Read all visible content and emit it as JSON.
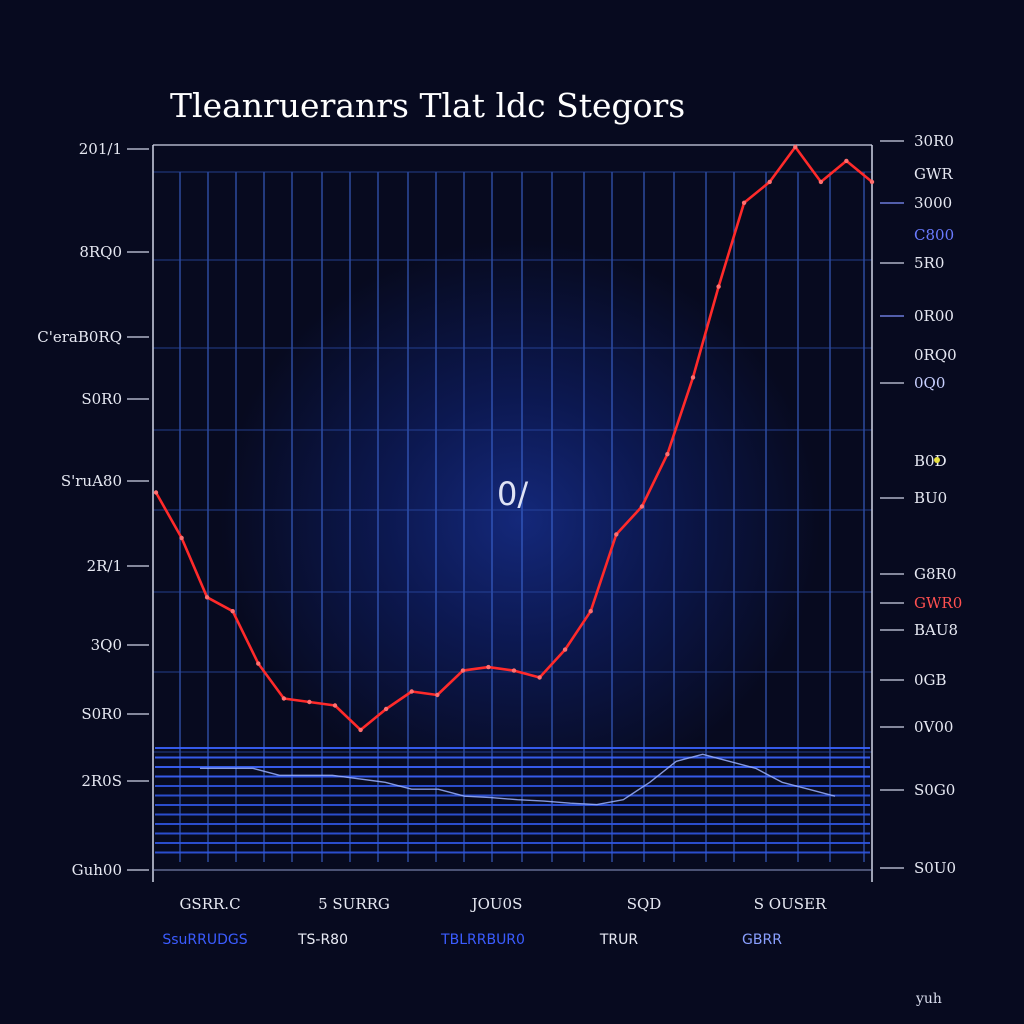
{
  "chart_data": {
    "type": "line",
    "title": "Tleanrueranrs Tlat ldc Stegors",
    "annotation": "0/",
    "corner_label": "yuh",
    "y_left_ticks": [
      "20'00",
      "1800",
      "1600",
      "1400",
      "1200",
      "1000",
      "800",
      "600",
      "400",
      "200",
      "00"
    ],
    "y_left_ticks_labels": [
      "201/1",
      "8RQ0",
      "C'eraB0RQ",
      "S0R0",
      "S'ruA80",
      "2R/1",
      "3Q0",
      "S0R0",
      "2R0S",
      "Guh00"
    ],
    "y_right_ticks": [
      "30R0",
      "GWR",
      "3000",
      "C800",
      "5R0",
      "0R00",
      "0RQ0",
      "0Q0",
      "B0D",
      "BU0",
      "G8R0",
      "GWR0",
      "BAU8",
      "0GB",
      "0V00",
      "S0G0",
      "S0U0"
    ],
    "y_range": [
      0,
      1000
    ],
    "x_ticks": [
      "GSRR.C",
      "5 SURRG",
      "JOU0S",
      "SQD",
      "S OUSER"
    ],
    "legend": [
      {
        "label": "SsuRRUDGS",
        "color": "#3b5cff"
      },
      {
        "label": "TS-R80",
        "color": "#e8eaf4"
      },
      {
        "label": "TBLRRBUR0",
        "color": "#3b5cff"
      },
      {
        "label": "TRUR",
        "color": "#e8eaf4"
      },
      {
        "label": "GBRR",
        "color": "#8aa0ff"
      }
    ],
    "grid": true,
    "series": [
      {
        "color": "#ff2a2a",
        "x": [
          0,
          1,
          2,
          3,
          4,
          5,
          6,
          7,
          8,
          9,
          10,
          11,
          12,
          13,
          14,
          15,
          16,
          17,
          18,
          19,
          20,
          21,
          22,
          23,
          24,
          25,
          26,
          27,
          28
        ],
        "values": [
          555,
          490,
          405,
          385,
          310,
          260,
          255,
          250,
          215,
          245,
          270,
          265,
          300,
          305,
          300,
          290,
          330,
          385,
          495,
          535,
          610,
          720,
          850,
          970,
          1000,
          1050,
          1000,
          1030,
          1000
        ]
      },
      {
        "color": "#9ab0ff",
        "x": [
          0,
          1,
          2,
          3,
          4,
          5,
          6,
          7,
          8,
          9,
          10,
          11,
          12,
          13,
          14,
          15,
          16,
          17,
          18,
          19,
          20,
          21,
          22,
          23,
          24
        ],
        "values": [
          160,
          160,
          160,
          150,
          150,
          150,
          145,
          140,
          130,
          130,
          120,
          118,
          115,
          113,
          110,
          108,
          115,
          140,
          170,
          180,
          170,
          160,
          140,
          130,
          120
        ]
      }
    ]
  }
}
